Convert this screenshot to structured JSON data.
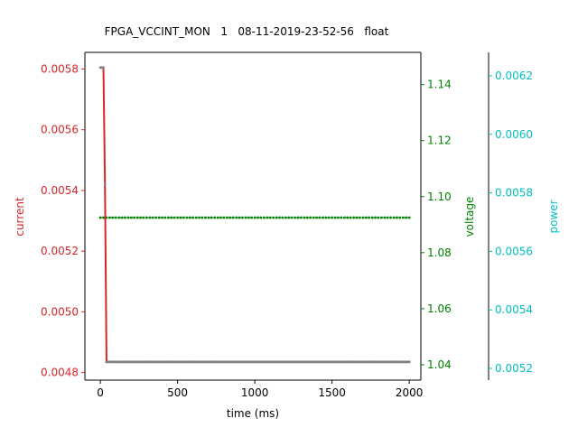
{
  "chart_data": {
    "type": "line",
    "title": "FPGA_VCCINT_MON   1   08-11-2019-23-52-56   float",
    "xlabel": "time (ms)",
    "xlim": [
      -100,
      2075
    ],
    "x_ticks": [
      0,
      500,
      1000,
      1500,
      2000
    ],
    "x_tick_labels": [
      "0",
      "500",
      "1000",
      "1500",
      "2000"
    ],
    "grid": false,
    "axes": {
      "current": {
        "label": "current",
        "color": "#d62728",
        "side": "left",
        "lim": [
          0.004775,
          0.005855
        ],
        "ticks": [
          0.0048,
          0.005,
          0.0052,
          0.0054,
          0.0056,
          0.0058
        ],
        "tick_labels": [
          "0.0048",
          "0.0050",
          "0.0052",
          "0.0054",
          "0.0056",
          "0.0058"
        ]
      },
      "voltage": {
        "label": "voltage",
        "color": "#008000",
        "side": "right",
        "lim": [
          1.0345,
          1.1515
        ],
        "ticks": [
          1.04,
          1.06,
          1.08,
          1.1,
          1.12,
          1.14
        ],
        "tick_labels": [
          "1.04",
          "1.06",
          "1.08",
          "1.10",
          "1.12",
          "1.14"
        ]
      },
      "power": {
        "label": "power",
        "color": "#00bfbf",
        "side": "right-outer",
        "lim": [
          0.00516,
          0.00628
        ],
        "ticks": [
          0.0052,
          0.0054,
          0.0056,
          0.0058,
          0.006,
          0.0062
        ],
        "tick_labels": [
          "0.0052",
          "0.0054",
          "0.0056",
          "0.0058",
          "0.0060",
          "0.0062"
        ]
      }
    },
    "series": [
      {
        "axis": "voltage",
        "color": "#008000",
        "marker_color": "#008000",
        "style": "dashed",
        "x_start": 0,
        "x_end": 2000,
        "x_step": 20,
        "value": 1.0925
      },
      {
        "axis": "current",
        "color": "#d62728",
        "marker_color": "#7f7f7f",
        "style": "solid",
        "points": [
          [
            0,
            0.005805
          ],
          [
            10,
            0.005805
          ],
          [
            20,
            0.005805
          ],
          [
            30,
            0.00542
          ],
          [
            40,
            0.004835
          ]
        ],
        "x_end": 2000,
        "x_step": 10,
        "value": 0.004835
      }
    ]
  }
}
